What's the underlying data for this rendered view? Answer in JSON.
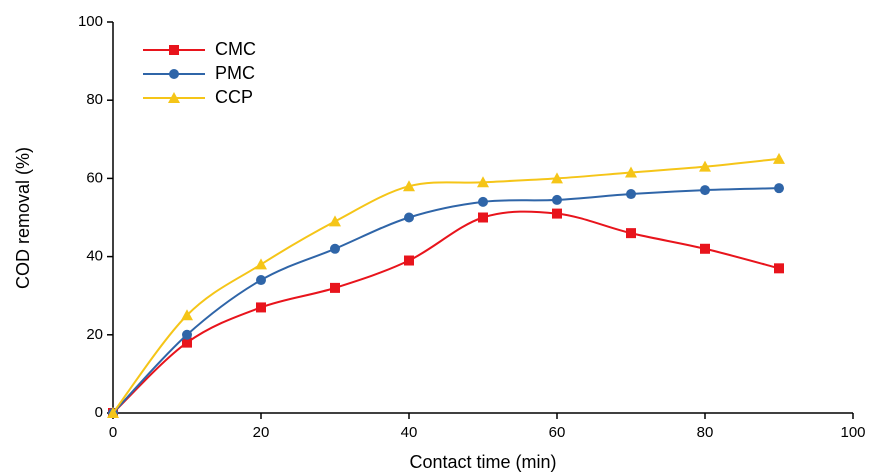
{
  "chart_data": {
    "type": "line",
    "x_label": "Contact time (min)",
    "y_label": "COD removal (%)",
    "x": [
      0,
      10,
      20,
      30,
      40,
      50,
      60,
      70,
      80,
      90
    ],
    "series": [
      {
        "name": "CMC",
        "color": "#e8141c",
        "marker": "square",
        "values": [
          0,
          18,
          27,
          32,
          39,
          50,
          51,
          46,
          42,
          37
        ]
      },
      {
        "name": "PMC",
        "color": "#2f65a8",
        "marker": "circle",
        "values": [
          0,
          20,
          34,
          42,
          50,
          54,
          54.5,
          56,
          57,
          57.5
        ]
      },
      {
        "name": "CCP",
        "color": "#f5c518",
        "marker": "triangle",
        "values": [
          0,
          25,
          38,
          49,
          58,
          59,
          60,
          61.5,
          63,
          65
        ]
      }
    ],
    "xlim": [
      0,
      100
    ],
    "xticks": [
      0,
      20,
      40,
      60,
      80,
      100
    ],
    "ylim": [
      0,
      100
    ],
    "yticks": [
      0,
      20,
      40,
      60,
      80,
      100
    ],
    "legend": "upper-left",
    "smooth": true
  }
}
